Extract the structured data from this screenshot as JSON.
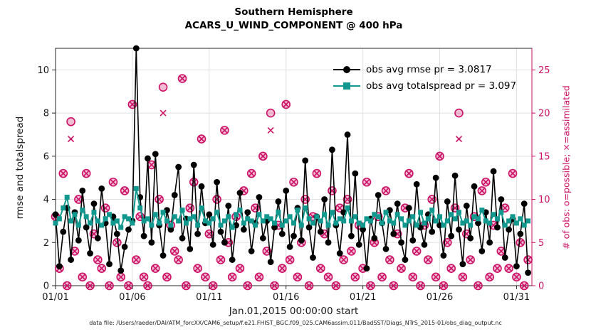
{
  "title": {
    "line1": "Southern Hemisphere",
    "line2": "ACARS_U_WIND_COMPONENT @ 400 hPa"
  },
  "axes": {
    "xlabel": "Jan.01,2015 00:00:00 start",
    "ylabel_left": "rmse and totalspread",
    "ylabel_right": "# of obs: o=possible; ×=assimilated"
  },
  "legend": {
    "items": [
      {
        "label": "obs avg rmse pr = 3.0817",
        "color": "#000000",
        "marker": "circle"
      },
      {
        "label": "obs avg totalspread pr = 3.097",
        "color": "#12998f",
        "marker": "square"
      }
    ]
  },
  "colors": {
    "crimson": "#cc1166",
    "teal": "#12998f",
    "black": "#000000",
    "grid": "#e0e0e0",
    "axis": "#262626"
  },
  "footer": {
    "text": "data file: /Users/raeder/DAI/ATM_forcXX/CAM6_setup/f.e21.FHIST_BGC.f09_025.CAM6assim.011/BadSST/Diags_NTrS_2015-01/obs_diag_output.nc"
  },
  "chart_data": {
    "type": "line",
    "title": "Southern Hemisphere — ACARS_U_WIND_COMPONENT @ 400 hPa",
    "xlabel": "Jan.01,2015 00:00:00 start",
    "ylabel_left": "rmse and totalspread",
    "ylabel_right": "# of obs: o=possible; ×=assimilated",
    "xlim": [
      1,
      32
    ],
    "ylim_left": [
      0,
      11
    ],
    "ylim_right": [
      0,
      27.5
    ],
    "x_ticks": [
      1,
      6,
      11,
      16,
      21,
      26,
      31
    ],
    "x_tick_labels": [
      "01/01",
      "01/06",
      "01/11",
      "01/16",
      "01/21",
      "01/26",
      "01/31"
    ],
    "y_ticks_left": [
      0,
      2,
      4,
      6,
      8,
      10
    ],
    "y_ticks_right": [
      0,
      5,
      10,
      15,
      20,
      25
    ],
    "grid": true,
    "x_start_day": 1,
    "x_step_days": 0.25,
    "series": [
      {
        "name": "obs avg rmse",
        "axis": "left",
        "color": "#000000",
        "marker": "circle",
        "avg": 3.0817,
        "values": [
          3.3,
          0.9,
          2.5,
          3.6,
          1.2,
          3.4,
          2.1,
          4.4,
          2.7,
          1.5,
          3.8,
          2.2,
          4.5,
          2.9,
          1.0,
          3.2,
          2.4,
          0.7,
          1.8,
          2.6,
          3.0,
          11.0,
          4.1,
          2.3,
          5.9,
          2.0,
          6.1,
          2.8,
          1.4,
          3.5,
          2.6,
          4.2,
          5.5,
          2.2,
          3.1,
          1.7,
          5.6,
          2.4,
          4.6,
          2.9,
          3.3,
          1.9,
          4.8,
          2.5,
          2.0,
          3.7,
          1.2,
          2.8,
          4.3,
          2.6,
          3.4,
          1.6,
          2.9,
          4.1,
          2.2,
          3.0,
          1.1,
          2.7,
          3.9,
          2.4,
          4.4,
          1.8,
          2.3,
          3.6,
          2.1,
          5.8,
          2.7,
          1.3,
          3.2,
          2.5,
          4.0,
          2.0,
          6.3,
          2.8,
          1.5,
          3.4,
          7.0,
          2.3,
          5.2,
          1.9,
          2.6,
          0.8,
          3.1,
          2.2,
          4.2,
          2.9,
          1.7,
          3.5,
          2.4,
          3.8,
          2.0,
          1.2,
          3.6,
          2.1,
          4.7,
          2.7,
          1.9,
          3.3,
          2.5,
          5.0,
          2.8,
          1.4,
          3.9,
          2.3,
          5.1,
          2.6,
          1.0,
          3.7,
          2.2,
          4.6,
          2.9,
          1.6,
          3.4,
          2.0,
          5.3,
          2.7,
          4.0,
          1.3,
          2.6,
          3.1,
          0.9,
          2.4,
          3.8,
          0.6
        ]
      },
      {
        "name": "obs avg totalspread",
        "axis": "left",
        "color": "#12998f",
        "marker": "square",
        "avg": 3.097,
        "values": [
          2.9,
          3.1,
          3.6,
          4.1,
          3.0,
          3.3,
          2.8,
          3.5,
          3.2,
          2.9,
          3.4,
          3.0,
          2.8,
          3.1,
          3.3,
          2.9,
          3.0,
          2.7,
          3.2,
          3.1,
          2.9,
          4.5,
          3.6,
          3.0,
          3.1,
          2.8,
          3.3,
          2.9,
          3.4,
          3.0,
          2.8,
          3.2,
          3.0,
          3.5,
          2.9,
          3.1,
          3.2,
          2.8,
          3.6,
          3.0,
          2.9,
          3.1,
          3.4,
          2.8,
          3.0,
          3.2,
          2.7,
          3.3,
          3.5,
          2.9,
          3.1,
          3.0,
          2.8,
          3.3,
          3.0,
          3.2,
          3.1,
          2.9,
          3.4,
          2.8,
          3.0,
          3.2,
          2.9,
          3.5,
          2.8,
          3.6,
          3.1,
          2.9,
          3.2,
          3.0,
          3.3,
          2.8,
          3.4,
          2.9,
          3.1,
          3.0,
          3.6,
          3.0,
          3.2,
          2.9,
          2.8,
          3.1,
          3.0,
          3.3,
          3.2,
          2.9,
          3.4,
          3.0,
          2.9,
          3.3,
          3.1,
          2.8,
          3.0,
          3.2,
          2.8,
          3.4,
          2.9,
          3.1,
          3.5,
          3.0,
          3.2,
          2.8,
          3.0,
          3.3,
          3.1,
          3.4,
          2.9,
          3.0,
          2.8,
          3.2,
          3.1,
          3.5,
          3.0,
          2.9,
          3.3,
          3.1,
          3.4,
          2.8,
          3.0,
          3.2,
          2.9,
          3.1,
          2.8,
          3.0
        ]
      },
      {
        "name": "possible obs",
        "axis": "right",
        "color": "#cc1166",
        "marker": "open-circle",
        "values": [
          8,
          2,
          13,
          0,
          19,
          4,
          10,
          1,
          13,
          0,
          6,
          3,
          2,
          9,
          0,
          12,
          5,
          1,
          11,
          0,
          21,
          3,
          8,
          1,
          0,
          14,
          2,
          10,
          23,
          1,
          7,
          4,
          3,
          24,
          0,
          9,
          12,
          2,
          17,
          1,
          6,
          0,
          10,
          3,
          18,
          5,
          1,
          8,
          2,
          11,
          0,
          13,
          9,
          1,
          15,
          4,
          20,
          0,
          7,
          2,
          21,
          3,
          12,
          1,
          5,
          10,
          0,
          8,
          13,
          2,
          6,
          1,
          11,
          0,
          9,
          3,
          10,
          4,
          1,
          7,
          2,
          12,
          0,
          5,
          8,
          1,
          11,
          3,
          0,
          6,
          2,
          9,
          13,
          1,
          4,
          0,
          7,
          3,
          10,
          1,
          15,
          0,
          5,
          2,
          9,
          20,
          1,
          6,
          3,
          8,
          0,
          11,
          12,
          1,
          7,
          2,
          4,
          9,
          2,
          13,
          1,
          5,
          0,
          3
        ]
      },
      {
        "name": "assimilated obs",
        "axis": "right",
        "color": "#cc1166",
        "marker": "x",
        "values": [
          8,
          2,
          13,
          0,
          17,
          4,
          10,
          1,
          13,
          0,
          6,
          3,
          2,
          9,
          0,
          12,
          5,
          1,
          11,
          0,
          21,
          3,
          8,
          1,
          0,
          14,
          2,
          10,
          20,
          1,
          7,
          4,
          3,
          24,
          0,
          9,
          12,
          2,
          17,
          1,
          6,
          0,
          10,
          3,
          18,
          5,
          1,
          8,
          2,
          11,
          0,
          13,
          9,
          1,
          15,
          4,
          18,
          0,
          7,
          2,
          21,
          3,
          12,
          1,
          5,
          10,
          0,
          8,
          13,
          2,
          6,
          1,
          11,
          0,
          9,
          3,
          10,
          4,
          1,
          7,
          2,
          12,
          0,
          5,
          8,
          1,
          11,
          3,
          0,
          6,
          2,
          9,
          13,
          1,
          4,
          0,
          7,
          3,
          10,
          1,
          15,
          0,
          5,
          2,
          9,
          17,
          1,
          6,
          3,
          8,
          0,
          11,
          12,
          1,
          7,
          2,
          4,
          9,
          2,
          13,
          1,
          5,
          0,
          3
        ]
      }
    ]
  }
}
